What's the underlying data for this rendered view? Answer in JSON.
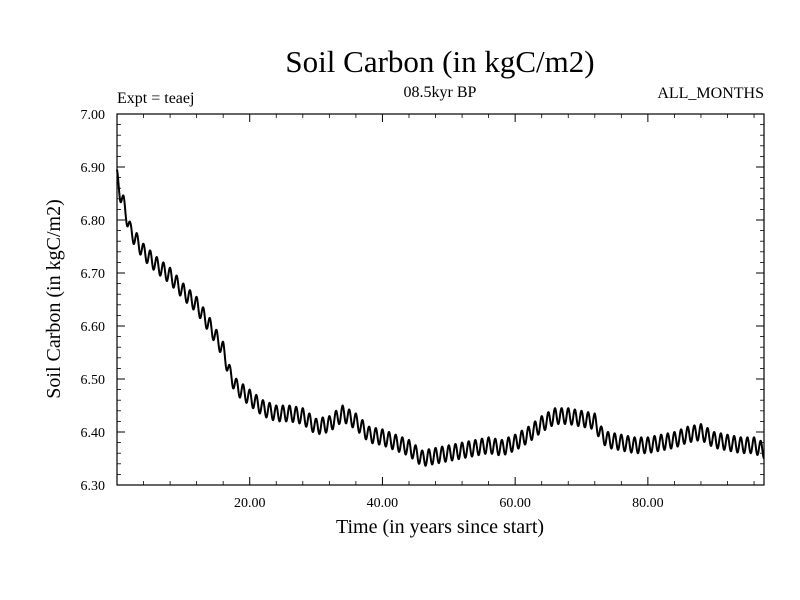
{
  "chart_data": {
    "type": "line",
    "title": "Soil Carbon (in kgC/m2)",
    "subtitle": "08.5kyr BP",
    "experiment": "Expt = teaej",
    "months": "ALL_MONTHS",
    "xlabel": "Time (in years since start)",
    "ylabel": "Soil Carbon (in kgC/m2)",
    "xlim": [
      0,
      97.5
    ],
    "ylim": [
      6.3,
      7.0
    ],
    "x_ticks": [
      20,
      40,
      60,
      80
    ],
    "x_tick_labels": [
      "20.00",
      "40.00",
      "60.00",
      "80.00"
    ],
    "y_ticks": [
      6.3,
      6.4,
      6.5,
      6.6,
      6.7,
      6.8,
      6.9,
      7.0
    ],
    "y_tick_labels": [
      "6.30",
      "6.40",
      "6.50",
      "6.60",
      "6.70",
      "6.80",
      "6.90",
      "7.00"
    ],
    "grid": false,
    "series": [
      {
        "name": "Soil Carbon",
        "color": "#000000",
        "seasonal_amplitude": 0.015,
        "seasonal_period_years": 1,
        "trend": {
          "x": [
            0,
            0.5,
            1,
            2,
            4,
            6,
            8,
            10,
            12,
            14,
            16,
            17,
            18,
            20,
            22,
            24,
            26,
            28,
            30,
            32,
            34,
            36,
            38,
            40,
            42,
            44,
            46,
            48,
            50,
            52,
            54,
            56,
            58,
            60,
            62,
            64,
            66,
            68,
            70,
            72,
            73,
            74,
            76,
            78,
            80,
            82,
            84,
            86,
            88,
            90,
            92,
            94,
            96,
            97.5
          ],
          "y": [
            6.88,
            6.85,
            6.83,
            6.78,
            6.74,
            6.715,
            6.695,
            6.665,
            6.64,
            6.6,
            6.555,
            6.51,
            6.485,
            6.465,
            6.445,
            6.435,
            6.435,
            6.43,
            6.41,
            6.415,
            6.435,
            6.42,
            6.395,
            6.39,
            6.38,
            6.37,
            6.35,
            6.355,
            6.36,
            6.365,
            6.37,
            6.375,
            6.37,
            6.38,
            6.395,
            6.415,
            6.43,
            6.43,
            6.425,
            6.42,
            6.395,
            6.385,
            6.38,
            6.375,
            6.375,
            6.38,
            6.385,
            6.395,
            6.4,
            6.385,
            6.38,
            6.375,
            6.375,
            6.365
          ]
        }
      }
    ]
  }
}
